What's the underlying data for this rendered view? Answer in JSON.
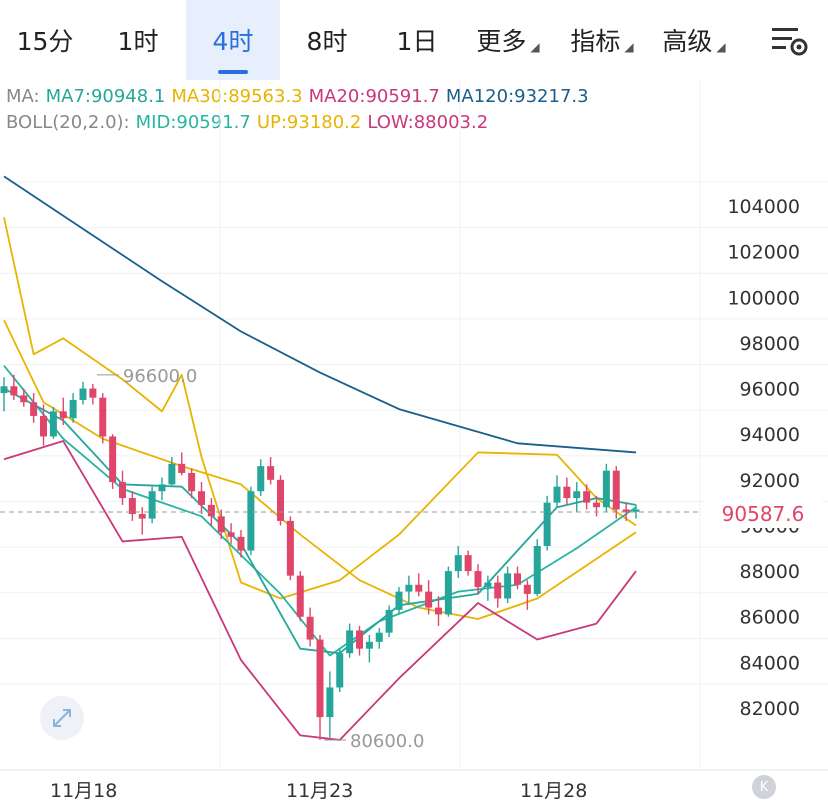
{
  "tabs": [
    {
      "label": "15分"
    },
    {
      "label": "1时"
    },
    {
      "label": "4时",
      "active": true
    },
    {
      "label": "8时"
    },
    {
      "label": "1日"
    },
    {
      "label": "更多"
    },
    {
      "label": "指标"
    },
    {
      "label": "高级"
    }
  ],
  "settings_icon": "chart-settings-icon",
  "legend": {
    "ma": {
      "prefix": "MA:",
      "ma7": "MA7:90948.1",
      "ma30": "MA30:89563.3",
      "ma20": "MA20:90591.7",
      "ma120": "MA120:93217.3"
    },
    "boll": {
      "prefix": "BOLL(20,2.0):",
      "mid": "MID:90591.7",
      "up": "UP:93180.2",
      "low": "LOW:88003.2"
    }
  },
  "colors": {
    "up": "#26a69a",
    "down": "#e0456a",
    "ma7": "#26a69a",
    "ma30": "#e8b400",
    "ma20": "#c8387a",
    "ma120": "#1a5e8a",
    "boll_mid": "#26b5a0",
    "boll_up": "#e8b400",
    "boll_low": "#c8387a",
    "active_tab": "#2a6fe0"
  },
  "current_price": "90587.6",
  "annotations": {
    "high": "96600.0",
    "low": "80600.0"
  },
  "icons": {
    "expand": "expand-icon",
    "k": "K"
  },
  "chart_data": {
    "type": "line",
    "y_axis_ticks": [
      104000,
      102000,
      100000,
      98000,
      96000,
      94000,
      92000,
      90000,
      88000,
      86000,
      84000,
      82000
    ],
    "x_labels": [
      "11月18",
      "11月23",
      "11月28"
    ],
    "ylim": [
      79800,
      107500
    ],
    "current_price": 90587.6,
    "high_marker": 96600,
    "low_marker": 80600,
    "candles": [
      [
        95800,
        96500,
        95000,
        96100
      ],
      [
        96100,
        96600,
        95500,
        95700
      ],
      [
        95700,
        96000,
        95200,
        95400
      ],
      [
        95400,
        95800,
        94500,
        94800
      ],
      [
        94800,
        95300,
        93500,
        93900
      ],
      [
        93900,
        95200,
        93800,
        95000
      ],
      [
        95000,
        95600,
        94400,
        94700
      ],
      [
        94700,
        95800,
        94500,
        95500
      ],
      [
        95500,
        96300,
        95300,
        96000
      ],
      [
        96000,
        96200,
        95300,
        95600
      ],
      [
        95600,
        95800,
        93600,
        93900
      ],
      [
        93900,
        94000,
        91600,
        91900
      ],
      [
        91900,
        92400,
        90900,
        91200
      ],
      [
        91200,
        91500,
        90200,
        90500
      ],
      [
        90500,
        90800,
        89600,
        90300
      ],
      [
        90300,
        91700,
        90100,
        91500
      ],
      [
        91500,
        92100,
        91100,
        91800
      ],
      [
        91800,
        93000,
        91700,
        92700
      ],
      [
        92700,
        93200,
        92200,
        92300
      ],
      [
        92300,
        92500,
        91200,
        91500
      ],
      [
        91500,
        91900,
        90500,
        90900
      ],
      [
        90900,
        91200,
        90000,
        90400
      ],
      [
        90400,
        90700,
        89400,
        89700
      ],
      [
        89700,
        90100,
        89200,
        89500
      ],
      [
        89500,
        89800,
        88600,
        88900
      ],
      [
        88900,
        91700,
        88700,
        91500
      ],
      [
        91500,
        92900,
        91300,
        92600
      ],
      [
        92600,
        93000,
        91800,
        92000
      ],
      [
        92000,
        92200,
        90000,
        90200
      ],
      [
        90200,
        90400,
        87600,
        87800
      ],
      [
        87800,
        88000,
        85800,
        86000
      ],
      [
        86000,
        86400,
        84700,
        85000
      ],
      [
        85000,
        85200,
        80600,
        81600
      ],
      [
        81600,
        83600,
        80700,
        82900
      ],
      [
        82900,
        84600,
        82700,
        84400
      ],
      [
        84400,
        85700,
        84200,
        85400
      ],
      [
        85400,
        85600,
        84300,
        84600
      ],
      [
        84600,
        85200,
        84000,
        84900
      ],
      [
        84900,
        85500,
        84600,
        85300
      ],
      [
        85300,
        86500,
        85100,
        86300
      ],
      [
        86300,
        87300,
        86100,
        87100
      ],
      [
        87100,
        87800,
        86600,
        87400
      ],
      [
        87400,
        87900,
        86900,
        87100
      ],
      [
        87100,
        87600,
        86100,
        86400
      ],
      [
        86400,
        86900,
        85600,
        86100
      ],
      [
        86100,
        88200,
        86000,
        88000
      ],
      [
        88000,
        89100,
        87700,
        88700
      ],
      [
        88700,
        88900,
        87800,
        88000
      ],
      [
        88000,
        88300,
        87000,
        87300
      ],
      [
        87300,
        87800,
        86700,
        87500
      ],
      [
        87500,
        87800,
        86400,
        86800
      ],
      [
        86800,
        88200,
        86600,
        87900
      ],
      [
        87900,
        88200,
        87200,
        87400
      ],
      [
        87400,
        87600,
        86300,
        87000
      ],
      [
        87000,
        89400,
        86900,
        89100
      ],
      [
        89100,
        91300,
        88900,
        91000
      ],
      [
        91000,
        92200,
        90800,
        91700
      ],
      [
        91700,
        92100,
        90900,
        91200
      ],
      [
        91200,
        91900,
        90600,
        91500
      ],
      [
        91500,
        91800,
        90700,
        91000
      ],
      [
        91000,
        91300,
        90400,
        90800
      ],
      [
        90800,
        92700,
        90600,
        92400
      ],
      [
        92400,
        92600,
        90300,
        90700
      ],
      [
        90700,
        91000,
        90200,
        90600
      ],
      [
        90600,
        90900,
        90300,
        90700
      ]
    ],
    "series": [
      {
        "key": "ma120",
        "values": [
          105300,
          103000,
          100700,
          98500,
          96700,
          95100,
          93600,
          93200
        ],
        "x": [
          0,
          8,
          16,
          24,
          32,
          40,
          52,
          64
        ]
      },
      {
        "key": "ma30",
        "values": [
          103500,
          97500,
          98200,
          96400,
          95000,
          96600,
          93000,
          87500,
          86800,
          87600,
          89600,
          93200,
          93100,
          91200,
          90000
        ],
        "x": [
          0,
          3,
          6,
          12,
          16,
          18,
          20,
          24,
          28,
          34,
          40,
          48,
          56,
          60,
          64
        ]
      },
      {
        "key": "ma30b",
        "values": [
          99000,
          95400,
          93800,
          92600,
          91800,
          89600,
          87600,
          86400,
          85900,
          86800,
          89700
        ],
        "x": [
          0,
          4,
          10,
          18,
          24,
          30,
          36,
          42,
          48,
          54,
          64
        ]
      },
      {
        "key": "boll_mid",
        "values": [
          97000,
          93800,
          91600,
          90400,
          87000,
          84300,
          85800,
          87100,
          87400,
          89000,
          90800
        ],
        "x": [
          0,
          6,
          12,
          20,
          28,
          33,
          38,
          46,
          52,
          58,
          64
        ]
      },
      {
        "key": "ma7",
        "values": [
          96000,
          94600,
          91800,
          91700,
          89200,
          84600,
          84400,
          86500,
          87000,
          90800,
          91200,
          90900
        ],
        "x": [
          0,
          6,
          12,
          18,
          24,
          30,
          34,
          40,
          48,
          56,
          60,
          64
        ]
      },
      {
        "key": "boll_low",
        "values": [
          92900,
          93700,
          89300,
          89500,
          84100,
          80800,
          80600,
          83300,
          86600,
          85000,
          85700,
          88000
        ],
        "x": [
          0,
          6,
          12,
          18,
          24,
          30,
          34,
          40,
          48,
          54,
          60,
          64
        ]
      }
    ]
  }
}
